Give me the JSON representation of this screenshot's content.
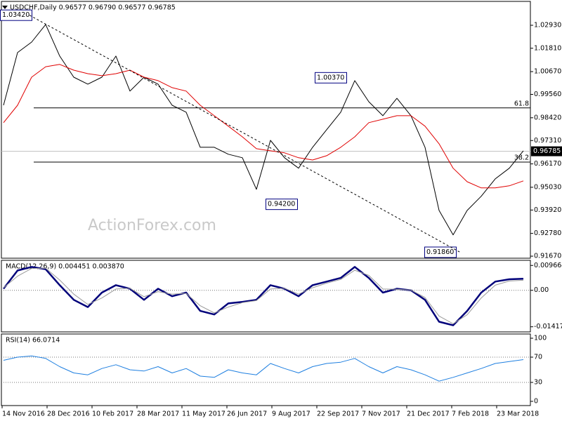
{
  "watermark": "ActionForex.com",
  "chart_data": [
    {
      "type": "line",
      "title": "USDCHF,Daily  0.96577 0.96790 0.96577 0.96785",
      "series": [
        {
          "color": "#000000",
          "values": [
            0.9903,
            1.016,
            1.0211,
            1.0297,
            1.0143,
            1.004,
            1.0006,
            1.004,
            1.0143,
            0.9972,
            1.004,
            1.0006,
            0.9903,
            0.9869,
            0.9698,
            0.9698,
            0.9664,
            0.9647,
            0.9493,
            0.9732,
            0.9647,
            0.9596,
            0.9698,
            0.9784,
            0.9869,
            1.0023,
            0.992,
            0.9852,
            0.9937,
            0.9852,
            0.9698,
            0.939,
            0.9271,
            0.939,
            0.9459,
            0.9544,
            0.9596,
            0.9681
          ]
        },
        {
          "color": "#e00000",
          "values": [
            0.9818,
            0.9903,
            1.004,
            1.0091,
            1.0102,
            1.0074,
            1.0057,
            1.0047,
            1.0057,
            1.0074,
            1.004,
            1.0023,
            0.9989,
            0.9972,
            0.9903,
            0.9852,
            0.9801,
            0.9749,
            0.9691,
            0.9681,
            0.9671,
            0.9647,
            0.9636,
            0.9657,
            0.9698,
            0.9749,
            0.9818,
            0.9835,
            0.9852,
            0.9852,
            0.9801,
            0.9715,
            0.9596,
            0.953,
            0.95,
            0.95,
            0.951,
            0.9534
          ]
        }
      ],
      "ylim": [
        0.9157,
        1.0406
      ],
      "yticks": [
        {
          "value": 1.0293,
          "label": "1.02930"
        },
        {
          "value": 1.0181,
          "label": "1.01810"
        },
        {
          "value": 1.0067,
          "label": "1.00670"
        },
        {
          "value": 0.9956,
          "label": "0.99560"
        },
        {
          "value": 0.9842,
          "label": "0.98420"
        },
        {
          "value": 0.9731,
          "label": "0.97310"
        },
        {
          "value": 0.9617,
          "label": "0.96170"
        },
        {
          "value": 0.9503,
          "label": "0.95030"
        },
        {
          "value": 0.9392,
          "label": "0.93920"
        },
        {
          "value": 0.9278,
          "label": "0.92780"
        },
        {
          "value": 0.9167,
          "label": "0.91670"
        }
      ],
      "levels": [
        {
          "value": 0.989,
          "label": "61.8"
        },
        {
          "value": 0.9626,
          "label": "38.2"
        }
      ],
      "current_price": 0.96785,
      "annotations": [
        {
          "value": 1.0342,
          "label": "1.03420"
        },
        {
          "value": 1.0037,
          "label": "1.00370"
        },
        {
          "value": 0.942,
          "label": "0.94200"
        },
        {
          "value": 0.9186,
          "label": "0.91860"
        }
      ]
    },
    {
      "type": "line",
      "title": "MACD(12,26,9) 0.004451 0.003870",
      "series": [
        {
          "color": "#00007a",
          "values": [
            0.0006,
            0.0077,
            0.0091,
            0.0082,
            0.002,
            -0.0037,
            -0.0065,
            -0.0009,
            0.002,
            0.0006,
            -0.0037,
            0.0006,
            -0.0023,
            -0.0009,
            -0.008,
            -0.0094,
            -0.0051,
            -0.0045,
            -0.0037,
            0.002,
            0.0006,
            -0.0023,
            0.002,
            0.0034,
            0.0048,
            0.0091,
            0.0048,
            -0.0009,
            0.0006,
            0.0,
            -0.0037,
            -0.0122,
            -0.0136,
            -0.008,
            -0.0009,
            0.0034,
            0.0043,
            0.0045
          ]
        },
        {
          "color": "#9a9a9a",
          "values": [
            0.001,
            0.0055,
            0.0085,
            0.0086,
            0.004,
            -0.0015,
            -0.0055,
            -0.003,
            0.0005,
            0.0008,
            -0.0025,
            -0.0005,
            -0.0015,
            -0.0012,
            -0.006,
            -0.0088,
            -0.0065,
            -0.0048,
            -0.004,
            0.0005,
            0.0008,
            -0.0015,
            0.001,
            0.0028,
            0.0042,
            0.0078,
            0.0058,
            0.0005,
            0.0004,
            0.0001,
            -0.0028,
            -0.01,
            -0.013,
            -0.0095,
            -0.003,
            0.002,
            0.0036,
            0.0039
          ]
        }
      ],
      "ylim": [
        -0.01616,
        0.01165
      ],
      "yticks": [
        0.009664,
        {
          "value": 0,
          "label": "0.00"
        },
        -0.014171
      ],
      "guide_lines": [
        0
      ]
    },
    {
      "type": "line",
      "title": "RSI(14) 66.0714",
      "series": [
        {
          "color": "#1e7fe0",
          "values": [
            65,
            70,
            72,
            68,
            55,
            45,
            42,
            52,
            58,
            50,
            48,
            55,
            45,
            52,
            40,
            38,
            50,
            45,
            42,
            60,
            52,
            45,
            55,
            60,
            62,
            68,
            55,
            45,
            55,
            50,
            42,
            32,
            38,
            45,
            52,
            60,
            63,
            66.0714
          ]
        }
      ],
      "ylim": [
        -6.7,
        106.7
      ],
      "yticks": [
        100,
        70,
        30,
        0
      ],
      "guide_lines": [
        70,
        30
      ],
      "xtick_labels": [
        "14 Nov 2016",
        "28 Dec 2016",
        "10 Feb 2017",
        "28 Mar 2017",
        "11 May 2017",
        "26 Jun 2017",
        "9 Aug 2017",
        "22 Sep 2017",
        "7 Nov 2017",
        "21 Dec 2017",
        "7 Feb 2018",
        "23 Mar 2018"
      ]
    }
  ]
}
